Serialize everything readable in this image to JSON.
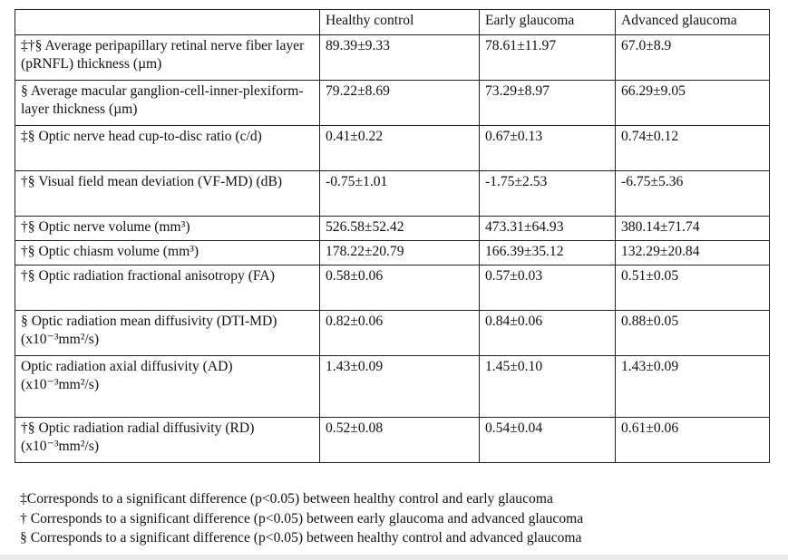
{
  "table": {
    "headers": [
      "",
      "Healthy control",
      "Early glaucoma",
      "Advanced glaucoma"
    ],
    "rows": [
      {
        "label": "‡†§ Average peripapillary retinal nerve fiber layer (pRNFL) thickness (µm)",
        "healthy": "89.39±9.33",
        "early": "78.61±11.97",
        "advanced": "67.0±8.9"
      },
      {
        "label": "§ Average macular ganglion-cell-inner-plexiform-layer thickness (µm)",
        "healthy": "79.22±8.69",
        "early": "73.29±8.97",
        "advanced": "66.29±9.05"
      },
      {
        "label": "‡§ Optic nerve head cup-to-disc ratio (c/d)",
        "healthy": "0.41±0.22",
        "early": "0.67±0.13",
        "advanced": "0.74±0.12"
      },
      {
        "label": "†§ Visual field mean deviation (VF-MD) (dB)",
        "healthy": "-0.75±1.01",
        "early": "-1.75±2.53",
        "advanced": "-6.75±5.36"
      },
      {
        "label": "†§ Optic nerve volume (mm³)",
        "healthy": "526.58±52.42",
        "early": "473.31±64.93",
        "advanced": "380.14±71.74"
      },
      {
        "label": "†§ Optic chiasm volume (mm³)",
        "healthy": "178.22±20.79",
        "early": "166.39±35.12",
        "advanced": "132.29±20.84"
      },
      {
        "label": "†§ Optic radiation fractional anisotropy (FA)",
        "healthy": "0.58±0.06",
        "early": "0.57±0.03",
        "advanced": "0.51±0.05"
      },
      {
        "label": "§ Optic radiation mean diffusivity (DTI-MD) (x10⁻³mm²/s)",
        "healthy": "0.82±0.06",
        "early": "0.84±0.06",
        "advanced": "0.88±0.05"
      },
      {
        "label": "Optic radiation axial diffusivity (AD) (x10⁻³mm²/s)",
        "healthy": "1.43±0.09",
        "early": "1.45±0.10",
        "advanced": "1.43±0.09"
      },
      {
        "label": "†§ Optic radiation radial diffusivity (RD) (x10⁻³mm²/s)",
        "healthy": "0.52±0.08",
        "early": "0.54±0.04",
        "advanced": "0.61±0.06"
      }
    ]
  },
  "footnotes": [
    "‡Corresponds to a significant difference (p<0.05) between healthy control and early glaucoma",
    "† Corresponds to a significant difference (p<0.05) between early glaucoma and advanced glaucoma",
    "§ Corresponds to a significant difference (p<0.05) between healthy control and advanced glaucoma"
  ]
}
